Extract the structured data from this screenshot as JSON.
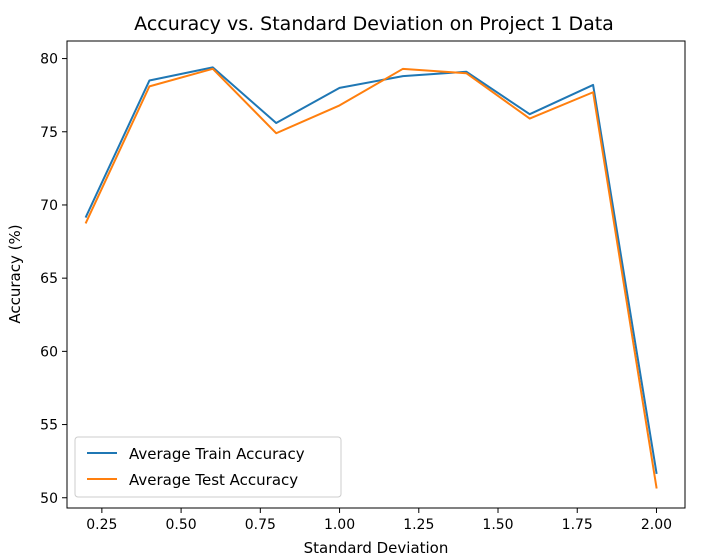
{
  "chart_data": {
    "type": "line",
    "title": "Accuracy vs. Standard Deviation on Project 1 Data",
    "xlabel": "Standard Deviation",
    "ylabel": "Accuracy (%)",
    "xlim": [
      0.14,
      2.09
    ],
    "ylim": [
      49.3,
      81.2
    ],
    "xticks": [
      0.25,
      0.5,
      0.75,
      1.0,
      1.25,
      1.5,
      1.75,
      2.0
    ],
    "xtick_labels": [
      "0.25",
      "0.50",
      "0.75",
      "1.00",
      "1.25",
      "1.50",
      "1.75",
      "2.00"
    ],
    "yticks": [
      50,
      55,
      60,
      65,
      70,
      75,
      80
    ],
    "ytick_labels": [
      "50",
      "55",
      "60",
      "65",
      "70",
      "75",
      "80"
    ],
    "grid": false,
    "legend_position": "lower-left",
    "x": [
      0.2,
      0.4,
      0.6,
      0.8,
      1.0,
      1.2,
      1.4,
      1.6,
      1.8,
      2.0
    ],
    "series": [
      {
        "name": "Average Train Accuracy",
        "color": "#1f77b4",
        "values": [
          69.2,
          78.5,
          79.4,
          75.6,
          78.0,
          78.8,
          79.1,
          76.2,
          78.2,
          51.7
        ]
      },
      {
        "name": "Average Test Accuracy",
        "color": "#ff7f0e",
        "values": [
          68.8,
          78.1,
          79.3,
          74.9,
          76.8,
          79.3,
          79.0,
          75.9,
          77.7,
          50.7
        ]
      }
    ]
  }
}
